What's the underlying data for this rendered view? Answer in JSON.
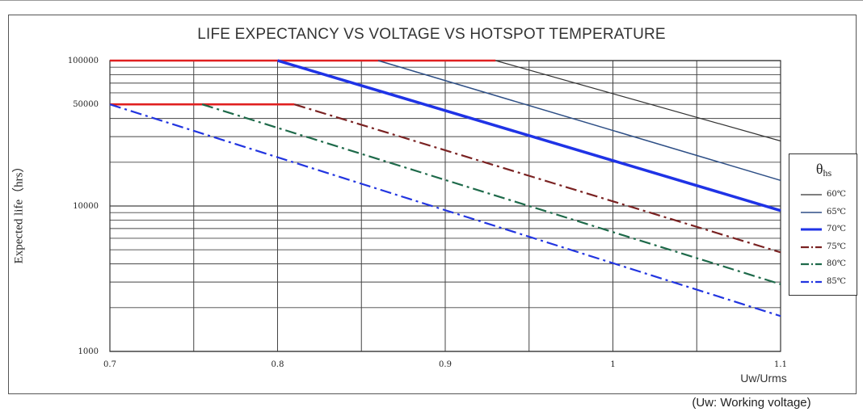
{
  "chart_data": {
    "type": "line",
    "title": "LIFE EXPECTANCY VS VOLTAGE VS HOTSPOT TEMPERATURE",
    "xlabel": "Uw/Urms",
    "ylabel": "Expected life（hrs）",
    "footnote": "(Uw: Working voltage)",
    "y_scale": "log",
    "xlim": [
      0.7,
      1.1
    ],
    "ylim": [
      1000,
      100000
    ],
    "x_ticks": [
      "0.7",
      "0.8",
      "0.9",
      "1",
      "1.1"
    ],
    "x_tick_values": [
      0.7,
      0.8,
      0.9,
      1.0,
      1.1
    ],
    "y_ticks": [
      "100000",
      "50000",
      "10000",
      "1000"
    ],
    "y_tick_values": [
      100000,
      50000,
      10000,
      1000
    ],
    "grid": true,
    "legend_title": "θhs",
    "legend_position": "right",
    "series": [
      {
        "name": "60℃",
        "color": "#333333",
        "style": "solid",
        "width": 1.2,
        "cap": {
          "x": [
            0.7,
            0.93
          ],
          "y": [
            100000,
            100000
          ],
          "color": "#e02020"
        },
        "x": [
          0.93,
          1.1
        ],
        "y": [
          100000,
          28000
        ]
      },
      {
        "name": "65℃",
        "color": "#2e4f86",
        "style": "solid",
        "width": 1.5,
        "x": [
          0.86,
          1.1
        ],
        "y": [
          100000,
          15000
        ]
      },
      {
        "name": "70℃",
        "color": "#1f33e6",
        "style": "solid",
        "width": 3.5,
        "x": [
          0.8,
          1.1
        ],
        "y": [
          100000,
          9300
        ]
      },
      {
        "name": "75℃",
        "color": "#7a2222",
        "style": "dashdot",
        "width": 2.2,
        "cap": {
          "x": [
            0.7,
            0.81
          ],
          "y": [
            50000,
            50000
          ],
          "color": "#e02020"
        },
        "x": [
          0.81,
          1.1
        ],
        "y": [
          50000,
          4800
        ]
      },
      {
        "name": "80℃",
        "color": "#1e6a4a",
        "style": "dashdot",
        "width": 2.2,
        "x": [
          0.755,
          1.1
        ],
        "y": [
          50000,
          2900
        ]
      },
      {
        "name": "85℃",
        "color": "#2235e0",
        "style": "dashdot",
        "width": 2.2,
        "x": [
          0.7,
          1.1
        ],
        "y": [
          50000,
          1750
        ]
      }
    ]
  }
}
